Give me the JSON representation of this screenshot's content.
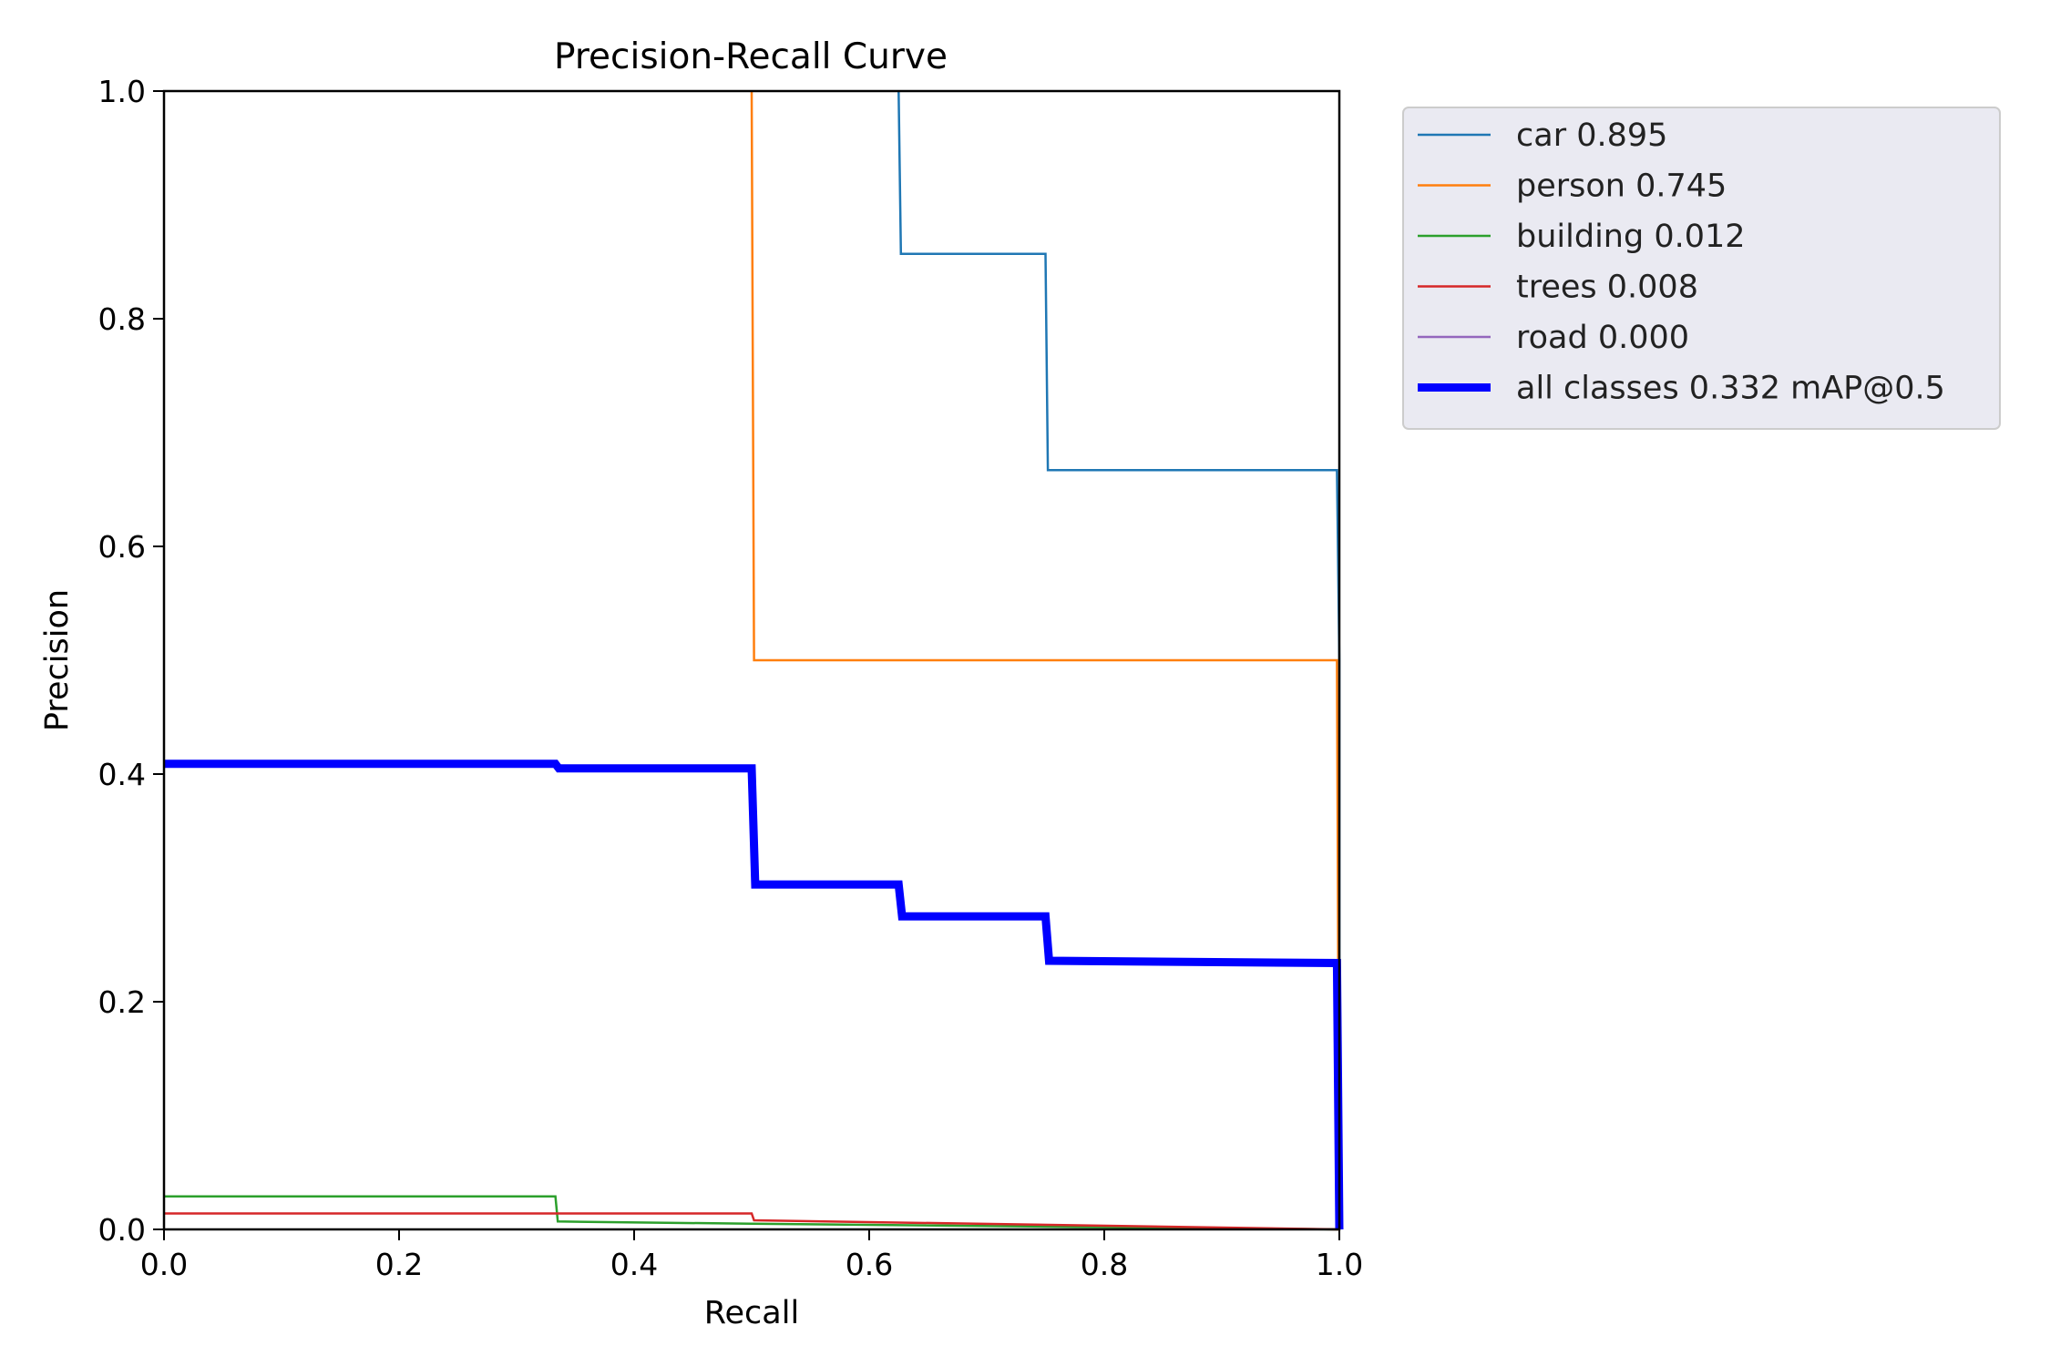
{
  "chart_data": {
    "type": "line",
    "title": "Precision-Recall Curve",
    "xlabel": "Recall",
    "ylabel": "Precision",
    "xlim": [
      0.0,
      1.0
    ],
    "ylim": [
      0.0,
      1.0
    ],
    "xticks": [
      "0.0",
      "0.2",
      "0.4",
      "0.6",
      "0.8",
      "1.0"
    ],
    "yticks": [
      "0.0",
      "0.2",
      "0.4",
      "0.6",
      "0.8",
      "1.0"
    ],
    "grid": false,
    "legend_placement": "outside top-right",
    "series": [
      {
        "name": "car 0.895",
        "color": "#1f77b4",
        "points": [
          [
            0.625,
            1.0
          ],
          [
            0.627,
            0.857
          ],
          [
            0.75,
            0.857
          ],
          [
            0.752,
            0.667
          ],
          [
            0.998,
            0.667
          ],
          [
            1.0,
            0.5
          ],
          [
            1.0,
            0.0
          ]
        ]
      },
      {
        "name": "person 0.745",
        "color": "#ff7f0e",
        "points": [
          [
            0.5,
            1.0
          ],
          [
            0.502,
            0.5
          ],
          [
            0.998,
            0.5
          ],
          [
            1.0,
            0.0
          ]
        ]
      },
      {
        "name": "building 0.012",
        "color": "#2ca02c",
        "points": [
          [
            0.0,
            0.029
          ],
          [
            0.333,
            0.029
          ],
          [
            0.335,
            0.007
          ],
          [
            0.5,
            0.005
          ],
          [
            1.0,
            0.0
          ]
        ]
      },
      {
        "name": "trees 0.008",
        "color": "#d62728",
        "points": [
          [
            0.0,
            0.014
          ],
          [
            0.5,
            0.014
          ],
          [
            0.502,
            0.008
          ],
          [
            1.0,
            0.0
          ]
        ]
      },
      {
        "name": "road 0.000",
        "color": "#9467bd",
        "points": []
      },
      {
        "name": "all classes 0.332 mAP@0.5",
        "color": "#0000ff",
        "thick": true,
        "points": [
          [
            0.0,
            0.409
          ],
          [
            0.333,
            0.409
          ],
          [
            0.336,
            0.405
          ],
          [
            0.5,
            0.405
          ],
          [
            0.503,
            0.303
          ],
          [
            0.625,
            0.303
          ],
          [
            0.628,
            0.275
          ],
          [
            0.75,
            0.275
          ],
          [
            0.753,
            0.236
          ],
          [
            0.998,
            0.234
          ],
          [
            1.0,
            0.0
          ]
        ]
      }
    ]
  }
}
